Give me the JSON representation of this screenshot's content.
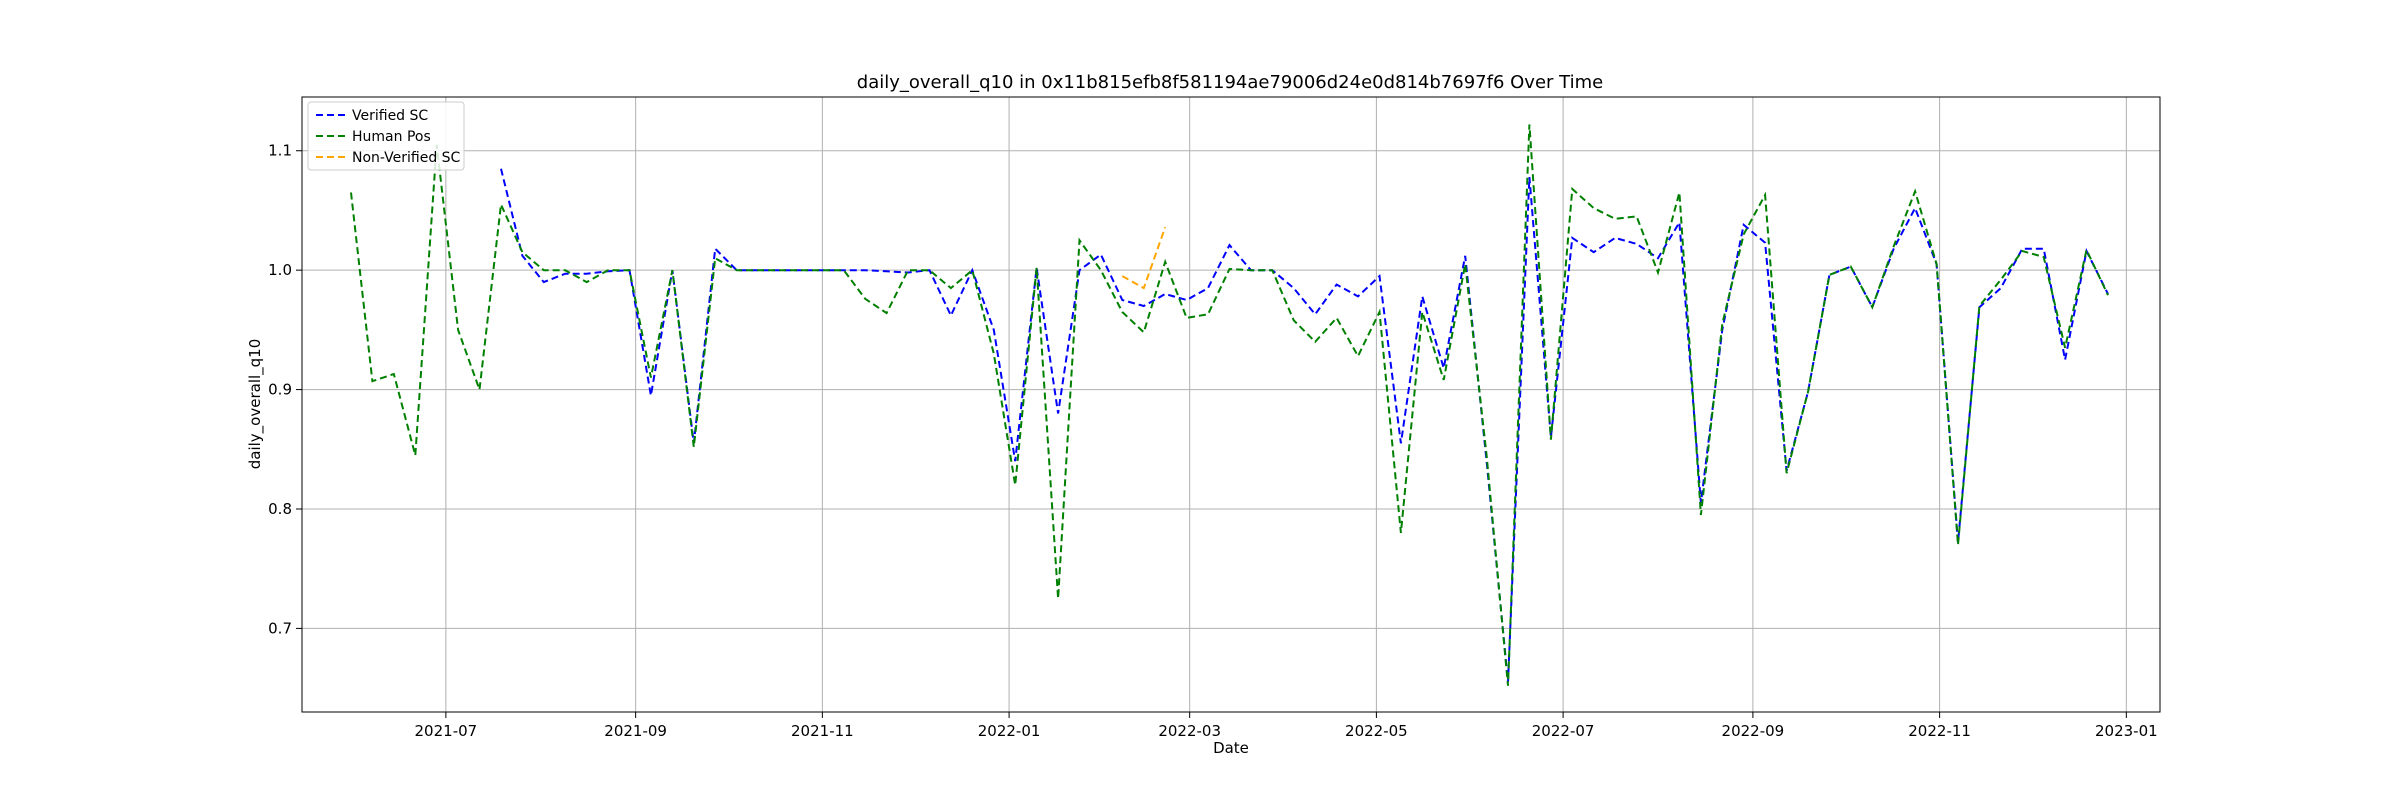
{
  "chart_data": {
    "type": "line",
    "title": "daily_overall_q10 in 0x11b815efb8f581194ae79006d24e0d814b7697f6 Over Time",
    "xlabel": "Date",
    "ylabel": "daily_overall_q10",
    "xlim": [
      "2021-05-15",
      "2023-01-12"
    ],
    "ylim": [
      0.63,
      1.145
    ],
    "x_ticks": [
      "2021-07-01",
      "2021-09-01",
      "2021-11-01",
      "2022-01-01",
      "2022-03-01",
      "2022-05-01",
      "2022-07-01",
      "2022-09-01",
      "2022-11-01",
      "2023-01-01"
    ],
    "x_tick_labels": [
      "2021-07",
      "2021-09",
      "2021-11",
      "2022-01",
      "2022-03",
      "2022-05",
      "2022-07",
      "2022-09",
      "2022-11",
      "2023-01"
    ],
    "y_ticks": [
      0.7,
      0.8,
      0.9,
      1.0,
      1.1
    ],
    "y_tick_labels": [
      "0.7",
      "0.8",
      "0.9",
      "1.0",
      "1.1"
    ],
    "grid": true,
    "legend_position": "top-left",
    "line_style": "dashed",
    "series": [
      {
        "name": "Verified SC",
        "color": "#0000ff",
        "points": [
          [
            "2021-07-19",
            1.085
          ],
          [
            "2021-07-26",
            1.012
          ],
          [
            "2021-08-02",
            0.99
          ],
          [
            "2021-08-09",
            0.997
          ],
          [
            "2021-08-16",
            0.997
          ],
          [
            "2021-08-23",
            0.999
          ],
          [
            "2021-08-30",
            1.0
          ],
          [
            "2021-09-06",
            0.895
          ],
          [
            "2021-09-13",
            1.0
          ],
          [
            "2021-09-20",
            0.855
          ],
          [
            "2021-09-27",
            1.018
          ],
          [
            "2021-10-04",
            1.0
          ],
          [
            "2021-10-11",
            1.0
          ],
          [
            "2021-10-18",
            1.0
          ],
          [
            "2021-10-25",
            1.0
          ],
          [
            "2021-11-01",
            1.0
          ],
          [
            "2021-11-08",
            1.0
          ],
          [
            "2021-11-15",
            1.0
          ],
          [
            "2021-11-22",
            0.999
          ],
          [
            "2021-11-29",
            0.998
          ],
          [
            "2021-12-06",
            1.0
          ],
          [
            "2021-12-13",
            0.962
          ],
          [
            "2021-12-20",
            1.0
          ],
          [
            "2021-12-27",
            0.95
          ],
          [
            "2022-01-03",
            0.84
          ],
          [
            "2022-01-10",
            1.002
          ],
          [
            "2022-01-17",
            0.88
          ],
          [
            "2022-01-24",
            1.0
          ],
          [
            "2022-01-31",
            1.013
          ],
          [
            "2022-02-07",
            0.975
          ],
          [
            "2022-02-14",
            0.97
          ],
          [
            "2022-02-21",
            0.98
          ],
          [
            "2022-02-28",
            0.975
          ],
          [
            "2022-03-07",
            0.985
          ],
          [
            "2022-03-14",
            1.021
          ],
          [
            "2022-03-21",
            1.0
          ],
          [
            "2022-03-28",
            1.0
          ],
          [
            "2022-04-04",
            0.985
          ],
          [
            "2022-04-11",
            0.963
          ],
          [
            "2022-04-18",
            0.988
          ],
          [
            "2022-04-25",
            0.978
          ],
          [
            "2022-05-02",
            0.995
          ],
          [
            "2022-05-09",
            0.855
          ],
          [
            "2022-05-16",
            0.978
          ],
          [
            "2022-05-23",
            0.918
          ],
          [
            "2022-05-30",
            1.012
          ],
          [
            "2022-06-06",
            0.84
          ],
          [
            "2022-06-13",
            0.655
          ],
          [
            "2022-06-20",
            1.078
          ],
          [
            "2022-06-27",
            0.86
          ],
          [
            "2022-07-04",
            1.027
          ],
          [
            "2022-07-11",
            1.015
          ],
          [
            "2022-07-18",
            1.027
          ],
          [
            "2022-07-25",
            1.022
          ],
          [
            "2022-08-01",
            1.01
          ],
          [
            "2022-08-08",
            1.04
          ],
          [
            "2022-08-15",
            0.805
          ],
          [
            "2022-08-22",
            0.95
          ],
          [
            "2022-08-29",
            1.038
          ],
          [
            "2022-09-05",
            1.023
          ],
          [
            "2022-09-12",
            0.832
          ],
          [
            "2022-09-19",
            0.898
          ],
          [
            "2022-09-26",
            0.996
          ],
          [
            "2022-10-03",
            1.003
          ],
          [
            "2022-10-10",
            0.969
          ],
          [
            "2022-10-17",
            1.018
          ],
          [
            "2022-10-24",
            1.052
          ],
          [
            "2022-10-31",
            1.005
          ],
          [
            "2022-11-07",
            0.772
          ],
          [
            "2022-11-14",
            0.969
          ],
          [
            "2022-11-21",
            0.985
          ],
          [
            "2022-11-28",
            1.018
          ],
          [
            "2022-12-05",
            1.018
          ],
          [
            "2022-12-12",
            0.925
          ],
          [
            "2022-12-19",
            1.016
          ],
          [
            "2022-12-26",
            0.98
          ]
        ]
      },
      {
        "name": "Human Pos",
        "color": "#008000",
        "points": [
          [
            "2021-05-31",
            1.065
          ],
          [
            "2021-06-07",
            0.907
          ],
          [
            "2021-06-14",
            0.913
          ],
          [
            "2021-06-21",
            0.845
          ],
          [
            "2021-06-28",
            1.105
          ],
          [
            "2021-07-05",
            0.95
          ],
          [
            "2021-07-12",
            0.9
          ],
          [
            "2021-07-19",
            1.055
          ],
          [
            "2021-07-26",
            1.015
          ],
          [
            "2021-08-02",
            1.0
          ],
          [
            "2021-08-09",
            1.0
          ],
          [
            "2021-08-16",
            0.99
          ],
          [
            "2021-08-23",
            1.0
          ],
          [
            "2021-08-30",
            1.0
          ],
          [
            "2021-09-06",
            0.91
          ],
          [
            "2021-09-13",
            1.0
          ],
          [
            "2021-09-20",
            0.852
          ],
          [
            "2021-09-27",
            1.01
          ],
          [
            "2021-10-04",
            1.0
          ],
          [
            "2021-10-11",
            1.0
          ],
          [
            "2021-10-18",
            1.0
          ],
          [
            "2021-10-25",
            1.0
          ],
          [
            "2021-11-01",
            1.0
          ],
          [
            "2021-11-08",
            1.0
          ],
          [
            "2021-11-15",
            0.976
          ],
          [
            "2021-11-22",
            0.964
          ],
          [
            "2021-11-29",
            1.0
          ],
          [
            "2021-12-06",
            1.0
          ],
          [
            "2021-12-13",
            0.985
          ],
          [
            "2021-12-20",
            1.0
          ],
          [
            "2021-12-27",
            0.93
          ],
          [
            "2022-01-03",
            0.82
          ],
          [
            "2022-01-10",
            1.002
          ],
          [
            "2022-01-17",
            0.725
          ],
          [
            "2022-01-24",
            1.025
          ],
          [
            "2022-01-31",
            1.0
          ],
          [
            "2022-02-07",
            0.965
          ],
          [
            "2022-02-14",
            0.948
          ],
          [
            "2022-02-21",
            1.007
          ],
          [
            "2022-02-28",
            0.96
          ],
          [
            "2022-03-07",
            0.963
          ],
          [
            "2022-03-14",
            1.001
          ],
          [
            "2022-03-21",
            1.0
          ],
          [
            "2022-03-28",
            1.0
          ],
          [
            "2022-04-04",
            0.958
          ],
          [
            "2022-04-11",
            0.94
          ],
          [
            "2022-04-18",
            0.96
          ],
          [
            "2022-04-25",
            0.928
          ],
          [
            "2022-05-02",
            0.965
          ],
          [
            "2022-05-09",
            0.78
          ],
          [
            "2022-05-16",
            0.965
          ],
          [
            "2022-05-23",
            0.908
          ],
          [
            "2022-05-30",
            1.005
          ],
          [
            "2022-06-06",
            0.845
          ],
          [
            "2022-06-13",
            0.652
          ],
          [
            "2022-06-20",
            1.122
          ],
          [
            "2022-06-27",
            0.858
          ],
          [
            "2022-07-04",
            1.068
          ],
          [
            "2022-07-11",
            1.052
          ],
          [
            "2022-07-18",
            1.043
          ],
          [
            "2022-07-25",
            1.045
          ],
          [
            "2022-08-01",
            0.998
          ],
          [
            "2022-08-08",
            1.065
          ],
          [
            "2022-08-15",
            0.795
          ],
          [
            "2022-08-22",
            0.955
          ],
          [
            "2022-08-29",
            1.03
          ],
          [
            "2022-09-05",
            1.063
          ],
          [
            "2022-09-12",
            0.83
          ],
          [
            "2022-09-19",
            0.898
          ],
          [
            "2022-09-26",
            0.996
          ],
          [
            "2022-10-03",
            1.003
          ],
          [
            "2022-10-10",
            0.969
          ],
          [
            "2022-10-17",
            1.02
          ],
          [
            "2022-10-24",
            1.066
          ],
          [
            "2022-10-31",
            1.005
          ],
          [
            "2022-11-07",
            0.77
          ],
          [
            "2022-11-14",
            0.97
          ],
          [
            "2022-11-21",
            0.992
          ],
          [
            "2022-11-28",
            1.016
          ],
          [
            "2022-12-05",
            1.011
          ],
          [
            "2022-12-12",
            0.935
          ],
          [
            "2022-12-19",
            1.017
          ],
          [
            "2022-12-26",
            0.979
          ]
        ]
      },
      {
        "name": "Non-Verified SC",
        "color": "#ffa500",
        "points": [
          [
            "2022-02-07",
            0.995
          ],
          [
            "2022-02-14",
            0.985
          ],
          [
            "2022-02-21",
            1.036
          ]
        ]
      }
    ]
  }
}
